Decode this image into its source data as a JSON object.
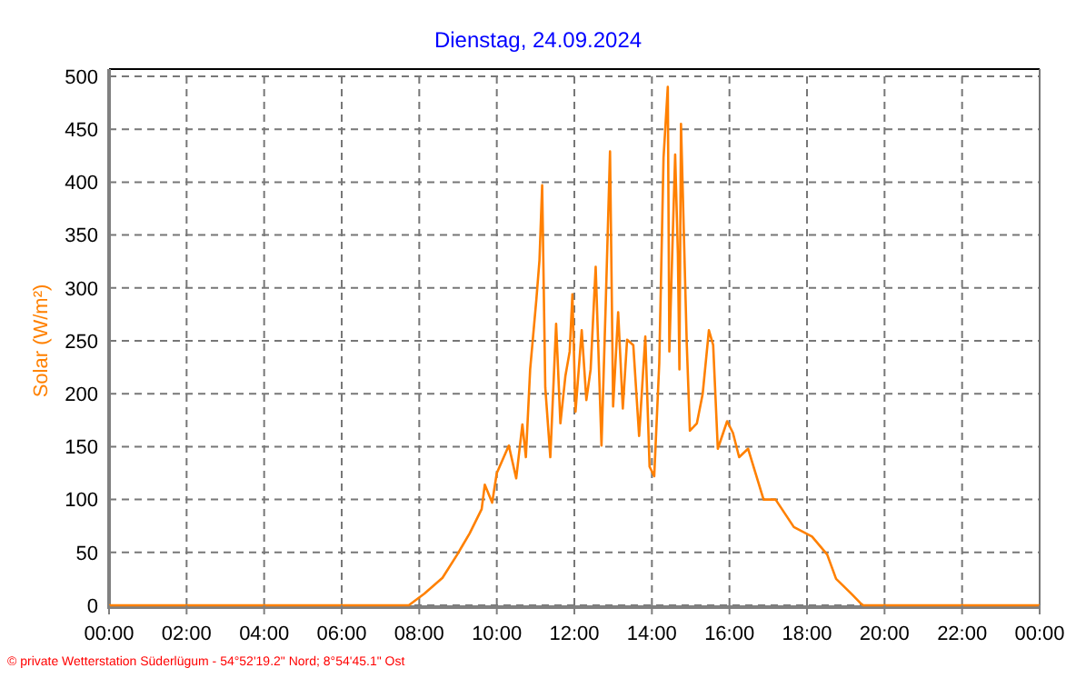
{
  "chart_data": {
    "type": "line",
    "title": "Dienstag, 24.09.2024",
    "ylabel": "Solar (W/m²)",
    "annotations": [
      "© private Wetterstation Süderlügum - 54°52'19.2\" Nord; 8°54'45.1\" Ost"
    ],
    "series": [
      {
        "color": "#ff8000",
        "x": [
          0,
          7.73,
          8.13,
          8.6,
          8.98,
          9.3,
          9.61,
          9.69,
          9.88,
          10.0,
          10.31,
          10.5,
          10.66,
          10.75,
          10.86,
          11.02,
          11.1,
          11.17,
          11.25,
          11.38,
          11.53,
          11.64,
          11.77,
          11.88,
          11.95,
          12.03,
          12.19,
          12.31,
          12.42,
          12.55,
          12.7,
          12.81,
          12.92,
          13.0,
          13.13,
          13.25,
          13.36,
          13.52,
          13.67,
          13.83,
          13.94,
          14.06,
          14.19,
          14.3,
          14.41,
          14.45,
          14.6,
          14.67,
          14.71,
          14.75,
          14.9,
          14.98,
          15.16,
          15.31,
          15.47,
          15.58,
          15.7,
          15.94,
          16.09,
          16.25,
          16.48,
          16.88,
          17.19,
          17.66,
          18.13,
          18.52,
          18.75,
          19.14,
          19.38,
          19.45,
          24
        ],
        "values": [
          0,
          0,
          11,
          26,
          48,
          68,
          91,
          114,
          97,
          125,
          151,
          120,
          171,
          140,
          223,
          289,
          326,
          397,
          206,
          140,
          266,
          172,
          217,
          240,
          294,
          183,
          260,
          194,
          223,
          320,
          151,
          286,
          429,
          188,
          277,
          186,
          251,
          246,
          160,
          254,
          131,
          122,
          229,
          423,
          490,
          240,
          426,
          332,
          223,
          455,
          246,
          165,
          172,
          200,
          260,
          246,
          148,
          174,
          163,
          140,
          148,
          100,
          100,
          74,
          65,
          48,
          25,
          11,
          2,
          0,
          0
        ]
      }
    ],
    "xlim": [
      0,
      24
    ],
    "xticks": [
      {
        "value": 0,
        "label": "00:00"
      },
      {
        "value": 2,
        "label": "02:00"
      },
      {
        "value": 4,
        "label": "04:00"
      },
      {
        "value": 6,
        "label": "06:00"
      },
      {
        "value": 8,
        "label": "08:00"
      },
      {
        "value": 10,
        "label": "10:00"
      },
      {
        "value": 12,
        "label": "12:00"
      },
      {
        "value": 14,
        "label": "14:00"
      },
      {
        "value": 16,
        "label": "16:00"
      },
      {
        "value": 18,
        "label": "18:00"
      },
      {
        "value": 20,
        "label": "20:00"
      },
      {
        "value": 22,
        "label": "22:00"
      },
      {
        "value": 24,
        "label": "00:00"
      }
    ],
    "ylim": [
      0,
      500
    ],
    "yticks": [
      0,
      50,
      100,
      150,
      200,
      250,
      300,
      350,
      400,
      450,
      500
    ],
    "grid": true,
    "marker": "none",
    "line_style": "solid"
  }
}
